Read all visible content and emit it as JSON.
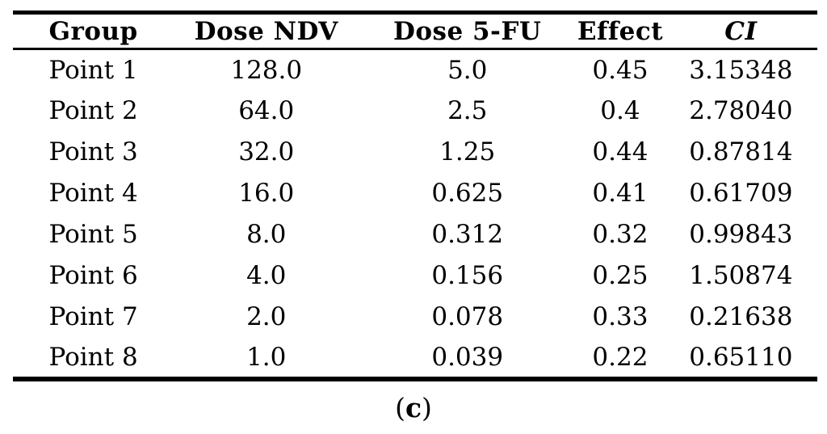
{
  "page": {
    "background_color": "#ffffff",
    "text_color": "#000000",
    "rule_color": "#000000"
  },
  "table": {
    "columns": [
      {
        "label": "Group"
      },
      {
        "label": "Dose NDV"
      },
      {
        "label": "Dose 5-FU"
      },
      {
        "label": "Effect"
      },
      {
        "label": "CI"
      }
    ],
    "rows": [
      [
        "Point 1",
        "128.0",
        "5.0",
        "0.45",
        "3.15348"
      ],
      [
        "Point 2",
        "64.0",
        "2.5",
        "0.4",
        "2.78040"
      ],
      [
        "Point 3",
        "32.0",
        "1.25",
        "0.44",
        "0.87814"
      ],
      [
        "Point 4",
        "16.0",
        "0.625",
        "0.41",
        "0.61709"
      ],
      [
        "Point 5",
        "8.0",
        "0.312",
        "0.32",
        "0.99843"
      ],
      [
        "Point 6",
        "4.0",
        "0.156",
        "0.25",
        "1.50874"
      ],
      [
        "Point 7",
        "2.0",
        "0.078",
        "0.33",
        "0.21638"
      ],
      [
        "Point 8",
        "1.0",
        "0.039",
        "0.22",
        "0.65110"
      ]
    ]
  },
  "caption": {
    "open_paren": "(",
    "letter": "c",
    "close_paren": ")"
  }
}
